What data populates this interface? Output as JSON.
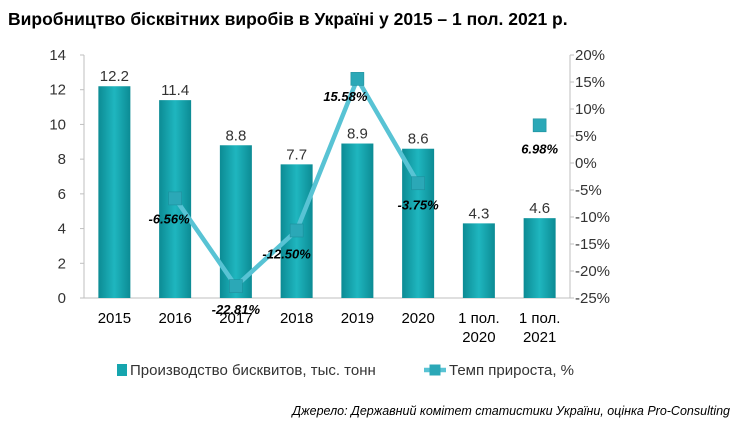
{
  "title": "Виробництво бісквітних виробів в Україні у 2015 – 1 пол. 2021 р.",
  "source": "Джерело: Державний комітет статистики України, оцінка Pro-Consulting",
  "chart_data": {
    "type": "bar",
    "categories": [
      "2015",
      "2016",
      "2017",
      "2018",
      "2019",
      "2020",
      "1 пол.\n2020",
      "1 пол.\n2021"
    ],
    "series": [
      {
        "name": "Производство бисквитов, тыс. тонн",
        "type": "bar",
        "axis": "left",
        "values": [
          12.2,
          11.4,
          8.8,
          7.7,
          8.9,
          8.6,
          4.3,
          4.6
        ],
        "labels": [
          "12.2",
          "11.4",
          "8.8",
          "7.7",
          "8.9",
          "8.6",
          "4.3",
          "4.6"
        ],
        "color": "#16a5ae"
      },
      {
        "name": "Темп прироста, %",
        "type": "line",
        "axis": "right",
        "values": [
          null,
          -6.56,
          -22.81,
          -12.5,
          15.58,
          -3.75,
          null,
          6.98
        ],
        "labels": [
          null,
          "-6.56%",
          "-22.81%",
          "-12.50%",
          "15.58%",
          "-3.75%",
          null,
          "6.98%"
        ],
        "color": "#58c3d4"
      }
    ],
    "y_left": {
      "ylim": [
        0,
        14
      ],
      "ticks": [
        "0",
        "2",
        "4",
        "6",
        "8",
        "10",
        "12",
        "14"
      ]
    },
    "y_right": {
      "ylim": [
        -25,
        20
      ],
      "ticks": [
        "-25%",
        "-20%",
        "-15%",
        "-10%",
        "-5%",
        "0%",
        "5%",
        "10%",
        "15%",
        "20%"
      ]
    },
    "legend": "bottom",
    "grid": false
  }
}
